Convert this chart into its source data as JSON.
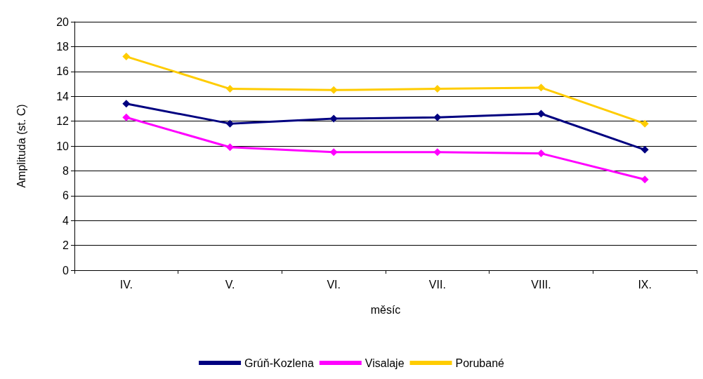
{
  "chart_data": {
    "type": "line",
    "xlabel": "měsíc",
    "ylabel": "Amplituda (st. C)",
    "categories": [
      "IV.",
      "V.",
      "VI.",
      "VII.",
      "VIII.",
      "IX."
    ],
    "series": [
      {
        "name": "Grúň-Kozlena",
        "color": "#000080",
        "values": [
          13.4,
          11.8,
          12.2,
          12.3,
          12.6,
          9.7
        ]
      },
      {
        "name": "Visalaje",
        "color": "#ff00ff",
        "values": [
          12.3,
          9.9,
          9.5,
          9.5,
          9.4,
          7.3
        ]
      },
      {
        "name": "Porubané",
        "color": "#ffcc00",
        "values": [
          17.2,
          14.6,
          14.5,
          14.6,
          14.7,
          11.8
        ]
      }
    ],
    "ylim": [
      0,
      20
    ],
    "yticks": [
      0,
      2,
      4,
      6,
      8,
      10,
      12,
      14,
      16,
      18,
      20
    ],
    "grid": "y",
    "legend": "bottom",
    "marker": "diamond",
    "line_style": "solid"
  }
}
